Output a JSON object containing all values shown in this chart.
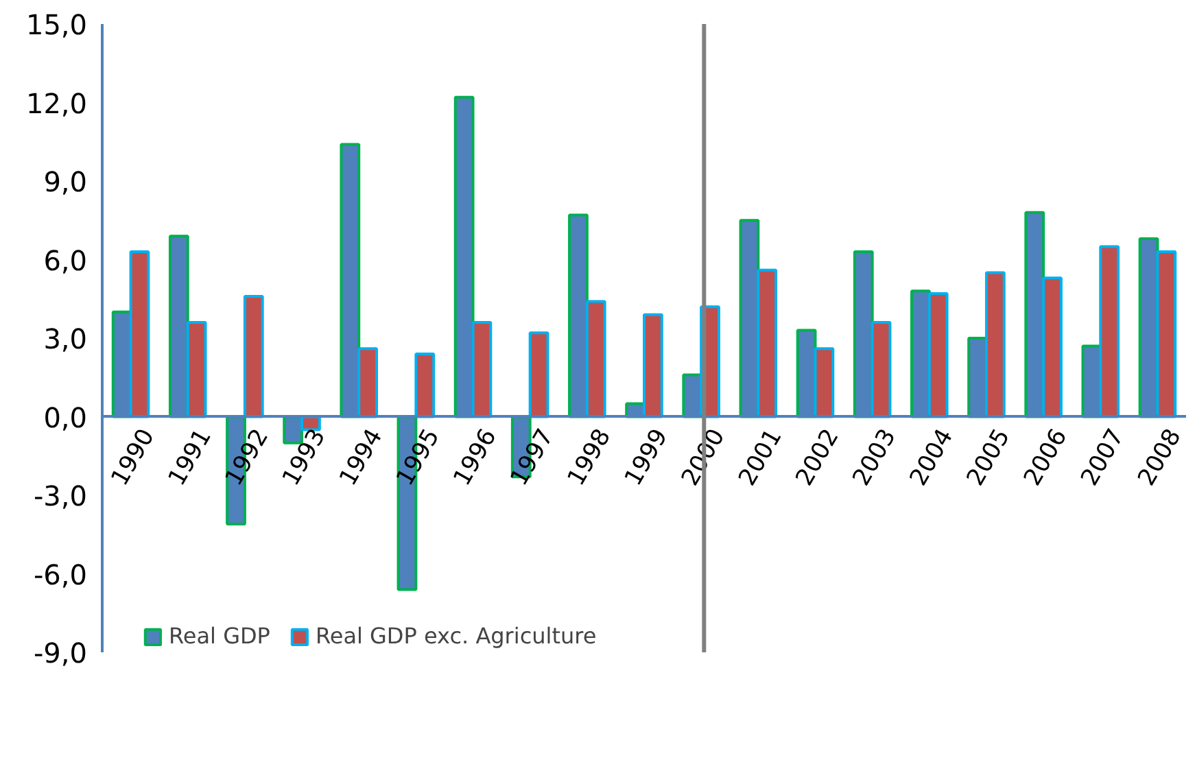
{
  "chart_data": {
    "type": "bar",
    "categories": [
      "1990",
      "1991",
      "1992",
      "1993",
      "1994",
      "1995",
      "1996",
      "1997",
      "1998",
      "1999",
      "2000",
      "2001",
      "2002",
      "2003",
      "2004",
      "2005",
      "2006",
      "2007",
      "2008"
    ],
    "series": [
      {
        "name": "Real GDP",
        "color": "#4f81bd",
        "values": [
          4.0,
          6.9,
          -4.1,
          -1.0,
          10.4,
          -6.6,
          12.2,
          -2.3,
          7.7,
          0.5,
          1.6,
          7.5,
          3.3,
          6.3,
          4.8,
          3.0,
          7.8,
          2.7,
          6.8
        ]
      },
      {
        "name": "Real GDP exc. Agriculture",
        "color": "#c0504d",
        "values": [
          6.3,
          3.6,
          4.6,
          -0.5,
          2.6,
          2.4,
          3.6,
          3.2,
          4.4,
          3.9,
          4.2,
          5.6,
          2.6,
          3.6,
          4.7,
          5.5,
          5.3,
          6.5,
          6.3
        ]
      }
    ],
    "ylim": [
      -9,
      15
    ],
    "yticks": [
      {
        "value": -9,
        "label": "-9,0"
      },
      {
        "value": -6,
        "label": "-6,0"
      },
      {
        "value": -3,
        "label": "-3,0"
      },
      {
        "value": 0,
        "label": "0,0"
      },
      {
        "value": 3,
        "label": "3,0"
      },
      {
        "value": 6,
        "label": "6,0"
      },
      {
        "value": 9,
        "label": "9,0"
      },
      {
        "value": 12,
        "label": "12,0"
      },
      {
        "value": 15,
        "label": "15,0"
      }
    ],
    "ref_lines": [
      {
        "axis": "x",
        "value": "2000",
        "color": "#808080"
      }
    ],
    "grid": false,
    "legend": "bottom"
  }
}
